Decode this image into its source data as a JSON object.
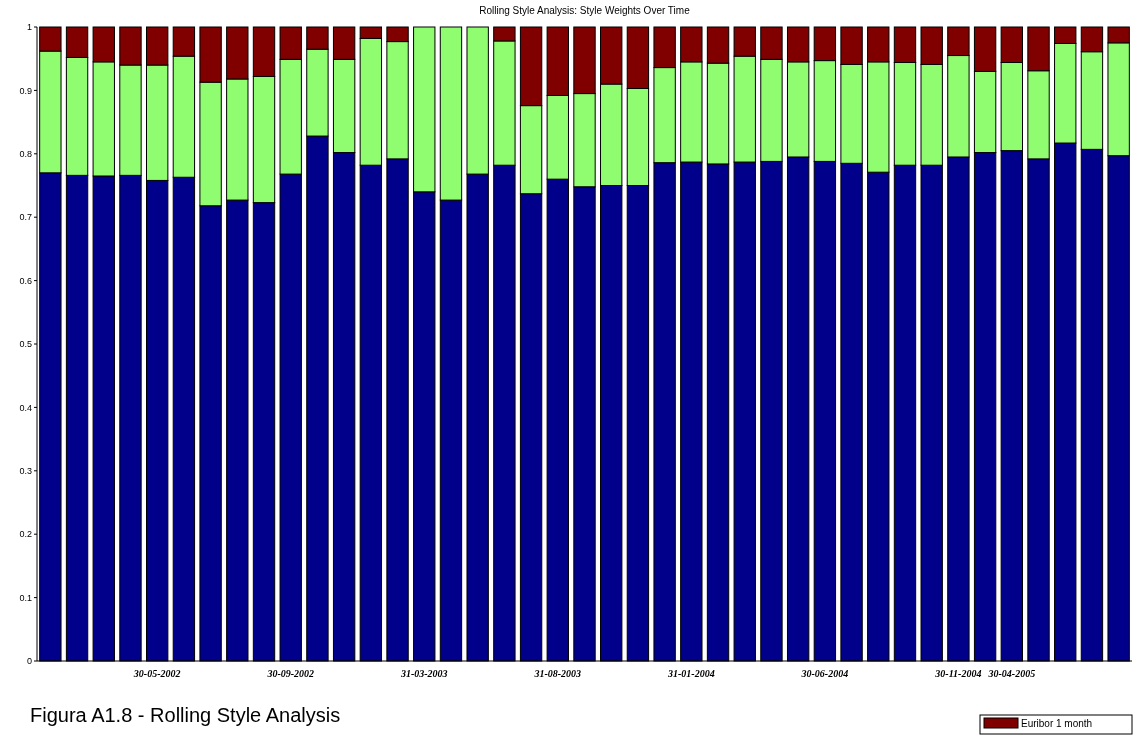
{
  "chart_data": {
    "type": "bar",
    "stacked": true,
    "title": "Rolling Style Analysis: Style Weights Over Time",
    "categories": [
      null,
      null,
      null,
      null,
      "30-05-2002",
      null,
      null,
      null,
      null,
      "30-09-2002",
      null,
      null,
      null,
      null,
      "31-03-2003",
      null,
      null,
      null,
      null,
      "31-08-2003",
      null,
      null,
      null,
      null,
      "31-01-2004",
      null,
      null,
      null,
      null,
      "30-06-2004",
      null,
      null,
      null,
      null,
      "30-11-2004",
      null,
      "30-04-2005",
      null,
      null,
      null,
      null
    ],
    "series": [
      {
        "color": "#00008b",
        "values": [
          0.77,
          0.766,
          0.765,
          0.766,
          0.758,
          0.763,
          0.718,
          0.727,
          0.723,
          0.768,
          0.828,
          0.802,
          0.782,
          0.792,
          0.74,
          0.727,
          0.768,
          0.782,
          0.737,
          0.76,
          0.748,
          0.75,
          0.75,
          0.786,
          0.787,
          0.784,
          0.787,
          0.788,
          0.795,
          0.788,
          0.785,
          0.771,
          0.782,
          0.782,
          0.795,
          0.802,
          0.805,
          0.792,
          0.817,
          0.807,
          0.797
        ]
      },
      {
        "color": "#90fc70",
        "values": [
          0.192,
          0.186,
          0.18,
          0.174,
          0.182,
          0.191,
          0.195,
          0.191,
          0.199,
          0.181,
          0.137,
          0.147,
          0.2,
          0.185,
          0.26,
          0.273,
          0.232,
          0.196,
          0.139,
          0.132,
          0.147,
          0.16,
          0.153,
          0.15,
          0.158,
          0.159,
          0.167,
          0.161,
          0.15,
          0.159,
          0.156,
          0.174,
          0.162,
          0.159,
          0.16,
          0.128,
          0.139,
          0.139,
          0.157,
          0.154,
          0.178
        ]
      },
      {
        "name": "Euribor 1 month",
        "color": "#800000",
        "values": [
          0.038,
          0.048,
          0.055,
          0.06,
          0.06,
          0.046,
          0.087,
          0.082,
          0.078,
          0.051,
          0.035,
          0.051,
          0.018,
          0.023,
          0,
          0,
          0,
          0.022,
          0.124,
          0.108,
          0.105,
          0.09,
          0.097,
          0.064,
          0.055,
          0.057,
          0.046,
          0.051,
          0.055,
          0.053,
          0.059,
          0.055,
          0.056,
          0.059,
          0.045,
          0.07,
          0.056,
          0.069,
          0.026,
          0.039,
          0.025
        ]
      }
    ],
    "ylim": [
      0,
      1
    ],
    "yticks": [
      0,
      0.1,
      0.2,
      0.3,
      0.4,
      0.5,
      0.6,
      0.7,
      0.8,
      0.9,
      1
    ],
    "grid": false,
    "legend": "bottom right",
    "annotations": [
      "Figura A1.8 - Rolling Style Analysis"
    ]
  }
}
